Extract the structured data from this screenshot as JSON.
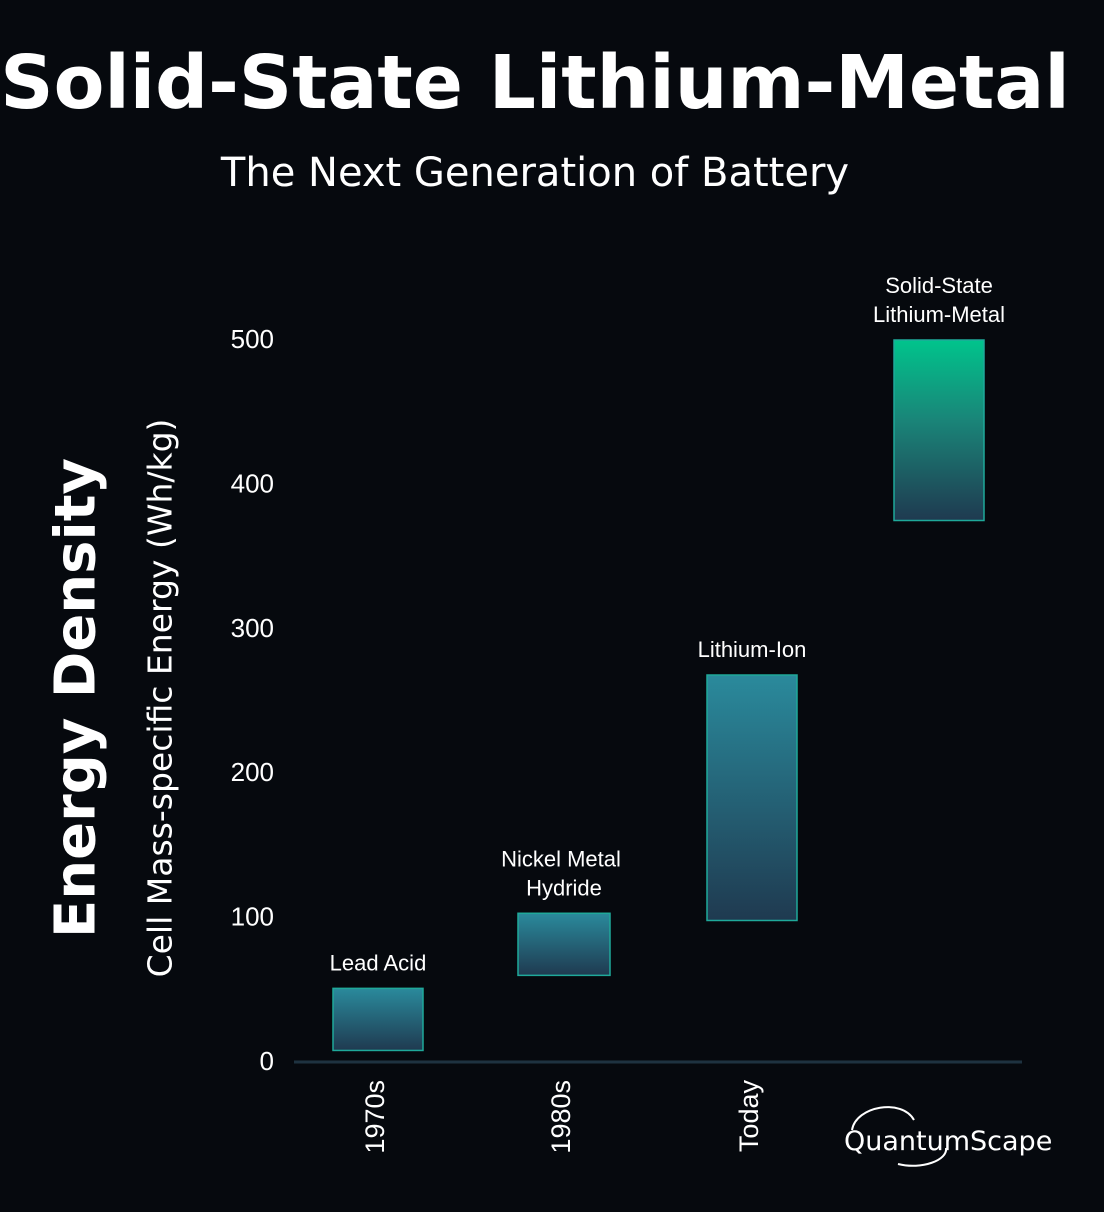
{
  "header": {
    "title": "Solid-State Lithium-Metal",
    "subtitle": "The Next Generation of Battery"
  },
  "axes": {
    "ylabel_main": "Energy Density",
    "ylabel_sub": "Cell Mass-specific Energy (Wh/kg)"
  },
  "logo": {
    "text": "QuantumScape"
  },
  "colors": {
    "background": "#06090e",
    "bar_top_teal": "#2a8a9c",
    "bar_bottom": "#1f3a50",
    "bar_top_green": "#00c48c",
    "bar_border": "#1fa99a",
    "axis_line": "#1e3240"
  },
  "chart_data": {
    "type": "range-bar",
    "ylim": [
      0,
      500
    ],
    "yticks": [
      0,
      100,
      200,
      300,
      400,
      500
    ],
    "categories": [
      "1970s",
      "1980s",
      "Today",
      ""
    ],
    "bars": [
      {
        "label": "Lead Acid",
        "category": "1970s",
        "low": 8,
        "high": 51
      },
      {
        "label": "Nickel Metal Hydride",
        "category": "1980s",
        "low": 60,
        "high": 103
      },
      {
        "label": "Lithium-Ion",
        "category": "Today",
        "low": 98,
        "high": 268
      },
      {
        "label": "Solid-State Lithium-Metal",
        "category": "",
        "low": 375,
        "high": 500
      }
    ]
  }
}
